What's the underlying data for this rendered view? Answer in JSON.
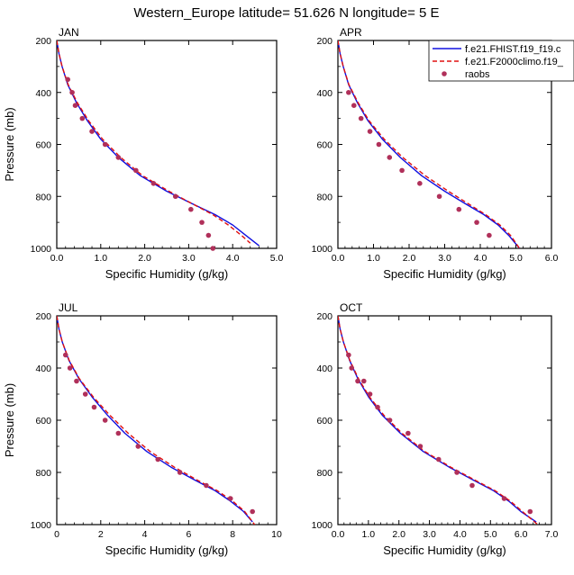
{
  "figure": {
    "title": "Western_Europe  latitude= 51.626 N longitude= 5 E"
  },
  "legend": {
    "entries": [
      {
        "label": "f.e21.FHIST.f19_f19.c",
        "color": "#1010e0",
        "style": "solid"
      },
      {
        "label": "f.e21.F2000climo.f19_",
        "color": "#e01010",
        "style": "dashed"
      },
      {
        "label": "raobs",
        "color": "#b0305a",
        "style": "marker"
      }
    ]
  },
  "chart_data": [
    {
      "type": "line",
      "panel": "JAN",
      "title": "JAN",
      "xlabel": "Specific Humidity (g/kg)",
      "ylabel": "Pressure (mb)",
      "xlim": [
        0,
        5
      ],
      "ylim": [
        1000,
        200
      ],
      "xticks": [
        "0.0",
        "1.0",
        "2.0",
        "3.0",
        "4.0",
        "5.0"
      ],
      "yticks": [
        "200",
        "400",
        "600",
        "800",
        "1000"
      ],
      "series": [
        {
          "name": "f.e21.FHIST.f19_f19.c",
          "x": [
            0.0,
            0.05,
            0.12,
            0.25,
            0.45,
            0.7,
            1.0,
            1.4,
            1.9,
            2.5,
            3.1,
            3.6,
            4.0,
            4.3,
            4.6
          ],
          "y": [
            200,
            250,
            300,
            370,
            440,
            510,
            580,
            650,
            720,
            780,
            830,
            870,
            910,
            950,
            990
          ]
        },
        {
          "name": "f.e21.F2000climo.f19_",
          "x": [
            0.0,
            0.05,
            0.12,
            0.26,
            0.47,
            0.73,
            1.04,
            1.45,
            1.95,
            2.55,
            3.1,
            3.55,
            3.9,
            4.2,
            4.4
          ],
          "y": [
            200,
            250,
            300,
            370,
            440,
            510,
            580,
            650,
            720,
            780,
            830,
            870,
            910,
            950,
            980
          ]
        },
        {
          "name": "raobs",
          "x": [
            0.25,
            0.35,
            0.42,
            0.58,
            0.8,
            1.1,
            1.4,
            1.8,
            2.2,
            2.7,
            3.05,
            3.3,
            3.45,
            3.55
          ],
          "y": [
            350,
            400,
            450,
            500,
            550,
            600,
            650,
            700,
            750,
            800,
            850,
            900,
            950,
            1000
          ]
        }
      ]
    },
    {
      "type": "line",
      "panel": "APR",
      "title": "APR",
      "xlabel": "Specific Humidity (g/kg)",
      "ylabel": "",
      "xlim": [
        0,
        6
      ],
      "ylim": [
        1000,
        200
      ],
      "xticks": [
        "0.0",
        "1.0",
        "2.0",
        "3.0",
        "4.0",
        "5.0",
        "6.0"
      ],
      "yticks": [
        "200",
        "400",
        "600",
        "800",
        "1000"
      ],
      "series": [
        {
          "name": "f.e21.FHIST.f19_f19.c",
          "x": [
            0.0,
            0.06,
            0.15,
            0.3,
            0.55,
            0.85,
            1.25,
            1.75,
            2.35,
            3.0,
            3.6,
            4.1,
            4.5,
            4.8,
            5.1
          ],
          "y": [
            200,
            250,
            300,
            370,
            440,
            510,
            580,
            650,
            720,
            780,
            830,
            870,
            910,
            950,
            1000
          ]
        },
        {
          "name": "f.e21.F2000climo.f19_",
          "x": [
            0.0,
            0.06,
            0.15,
            0.31,
            0.57,
            0.88,
            1.3,
            1.82,
            2.45,
            3.1,
            3.68,
            4.15,
            4.55,
            4.85,
            5.1
          ],
          "y": [
            200,
            250,
            300,
            370,
            440,
            510,
            580,
            650,
            720,
            780,
            830,
            870,
            910,
            950,
            1000
          ]
        },
        {
          "name": "raobs",
          "x": [
            0.3,
            0.45,
            0.65,
            0.9,
            1.15,
            1.45,
            1.8,
            2.3,
            2.85,
            3.4,
            3.9,
            4.25
          ],
          "y": [
            400,
            450,
            500,
            550,
            600,
            650,
            700,
            750,
            800,
            850,
            900,
            950
          ]
        }
      ]
    },
    {
      "type": "line",
      "panel": "JUL",
      "title": "JUL",
      "xlabel": "Specific Humidity (g/kg)",
      "ylabel": "Pressure (mb)",
      "xlim": [
        0,
        10
      ],
      "ylim": [
        1000,
        200
      ],
      "xticks": [
        "0",
        "2",
        "4",
        "6",
        "8",
        "10"
      ],
      "yticks": [
        "200",
        "400",
        "600",
        "800",
        "1000"
      ],
      "series": [
        {
          "name": "f.e21.FHIST.f19_f19.c",
          "x": [
            0.0,
            0.1,
            0.25,
            0.55,
            1.0,
            1.6,
            2.3,
            3.1,
            4.1,
            5.2,
            6.3,
            7.2,
            7.9,
            8.5,
            8.9
          ],
          "y": [
            200,
            250,
            300,
            370,
            440,
            510,
            580,
            650,
            720,
            780,
            830,
            870,
            910,
            950,
            990
          ]
        },
        {
          "name": "f.e21.F2000climo.f19_",
          "x": [
            0.0,
            0.1,
            0.25,
            0.56,
            1.02,
            1.65,
            2.4,
            3.25,
            4.25,
            5.35,
            6.4,
            7.3,
            8.0,
            8.55,
            9.0
          ],
          "y": [
            200,
            250,
            300,
            370,
            440,
            510,
            580,
            650,
            720,
            780,
            830,
            870,
            910,
            950,
            1000
          ]
        },
        {
          "name": "raobs",
          "x": [
            0.4,
            0.6,
            0.9,
            1.3,
            1.7,
            2.2,
            2.8,
            3.7,
            4.6,
            5.6,
            6.8,
            7.9,
            8.9
          ],
          "y": [
            350,
            400,
            450,
            500,
            550,
            600,
            650,
            700,
            750,
            800,
            850,
            900,
            950
          ]
        }
      ]
    },
    {
      "type": "line",
      "panel": "OCT",
      "title": "OCT",
      "xlabel": "Specific Humidity (g/kg)",
      "ylabel": "",
      "xlim": [
        0,
        7
      ],
      "ylim": [
        1000,
        200
      ],
      "xticks": [
        "0.0",
        "1.0",
        "2.0",
        "3.0",
        "4.0",
        "5.0",
        "6.0",
        "7.0"
      ],
      "yticks": [
        "200",
        "400",
        "600",
        "800",
        "1000"
      ],
      "series": [
        {
          "name": "f.e21.FHIST.f19_f19.c",
          "x": [
            0.0,
            0.07,
            0.18,
            0.38,
            0.65,
            1.0,
            1.45,
            2.05,
            2.8,
            3.65,
            4.45,
            5.1,
            5.6,
            6.0,
            6.5
          ],
          "y": [
            200,
            250,
            300,
            370,
            440,
            510,
            580,
            650,
            720,
            780,
            830,
            870,
            910,
            950,
            990
          ]
        },
        {
          "name": "f.e21.F2000climo.f19_",
          "x": [
            0.0,
            0.07,
            0.18,
            0.39,
            0.67,
            1.03,
            1.5,
            2.1,
            2.85,
            3.7,
            4.5,
            5.15,
            5.65,
            6.05,
            6.55
          ],
          "y": [
            200,
            250,
            300,
            370,
            440,
            510,
            580,
            650,
            720,
            780,
            830,
            870,
            910,
            950,
            1000
          ]
        },
        {
          "name": "raobs",
          "x": [
            0.35,
            0.45,
            0.65,
            0.85,
            1.05,
            1.3,
            1.7,
            2.3,
            2.7,
            3.3,
            3.9,
            4.4,
            5.45,
            6.3
          ],
          "y": [
            350,
            400,
            450,
            450,
            500,
            550,
            600,
            650,
            700,
            750,
            800,
            850,
            900,
            950
          ]
        }
      ]
    }
  ]
}
